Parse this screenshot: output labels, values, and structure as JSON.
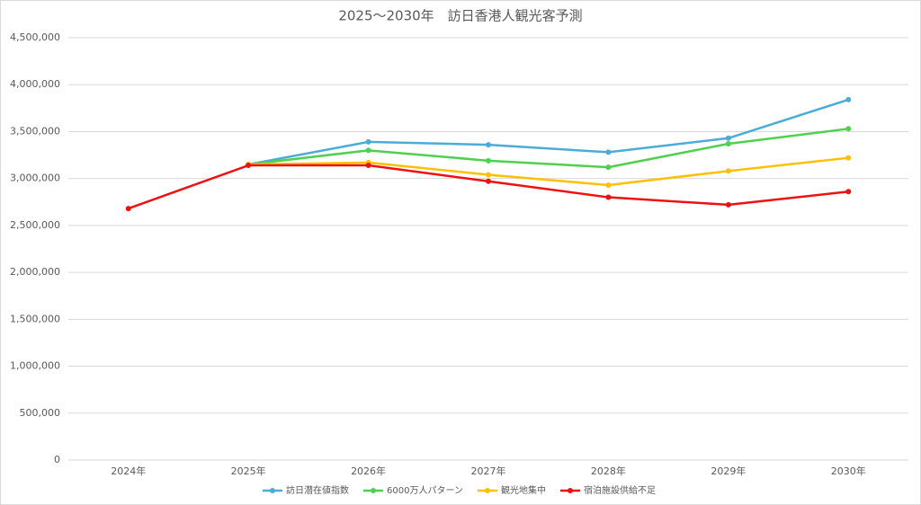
{
  "chart_data": {
    "type": "line",
    "title": "2025〜2030年　訪日香港人観光客予測",
    "categories": [
      "2024年",
      "2025年",
      "2026年",
      "2027年",
      "2028年",
      "2029年",
      "2030年"
    ],
    "series": [
      {
        "name": "訪日潜在値指数",
        "color": "#4bacd8",
        "values": [
          null,
          3150000,
          3390000,
          3360000,
          3280000,
          3430000,
          3840000
        ]
      },
      {
        "name": "6000万人パターン",
        "color": "#4fd04f",
        "values": [
          null,
          3150000,
          3300000,
          3190000,
          3120000,
          3370000,
          3530000
        ]
      },
      {
        "name": "観光地集中",
        "color": "#ffc000",
        "values": [
          null,
          3150000,
          3170000,
          3040000,
          2930000,
          3080000,
          3220000
        ]
      },
      {
        "name": "宿泊施設供給不足",
        "color": "#ee1111",
        "values": [
          2680000,
          3140000,
          3140000,
          2970000,
          2800000,
          2720000,
          2860000
        ]
      }
    ],
    "ylim": [
      0,
      4500000
    ],
    "yticks": [
      0,
      {
        "value": 500000,
        "label": "500,000"
      },
      {
        "value": 1000000,
        "label": "1,000,000"
      },
      {
        "value": 1500000,
        "label": "1,500,000"
      },
      {
        "value": 2000000,
        "label": "2,000,000"
      },
      {
        "value": 2500000,
        "label": "2,500,000"
      },
      {
        "value": 3000000,
        "label": "3,000,000"
      },
      {
        "value": 3500000,
        "label": "3,500,000"
      },
      {
        "value": 4000000,
        "label": "4,000,000"
      },
      {
        "value": 4500000,
        "label": "4,500,000"
      }
    ],
    "grid": true,
    "legend": "bottom"
  }
}
